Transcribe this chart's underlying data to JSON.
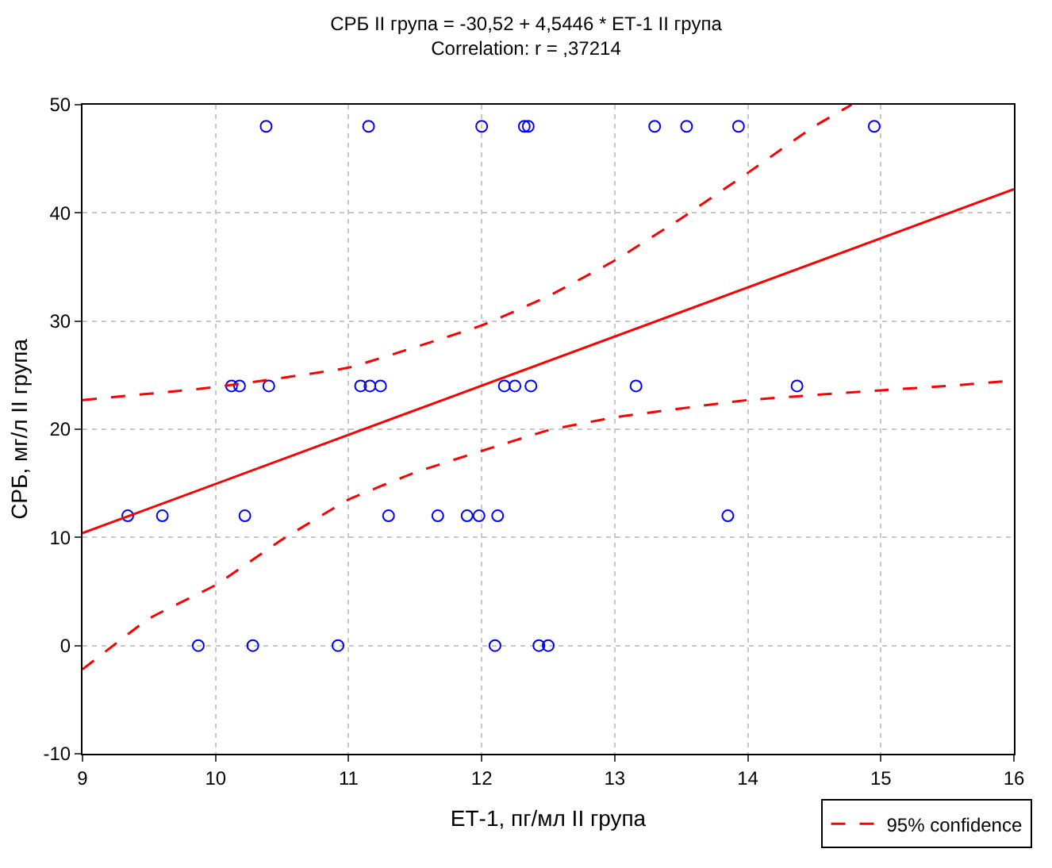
{
  "chart_data": {
    "type": "scatter",
    "title": "СРБ II група = -30,52 + 4,5446 * ЕТ-1 II група",
    "subtitle": "Correlation: r = ,37214",
    "xlabel": "ЕТ-1, пг/мл II група",
    "ylabel": "СРБ, мг/л II група",
    "xlim": [
      9,
      16
    ],
    "xticks": [
      9,
      10,
      11,
      12,
      13,
      14,
      15,
      16
    ],
    "ylim": [
      -10,
      50
    ],
    "yticks": [
      -10,
      0,
      10,
      20,
      30,
      40,
      50
    ],
    "grid": true,
    "legend": "bottom right",
    "series": [
      {
        "type": "scatter",
        "color": "#0000ff",
        "marker": "circle",
        "x": [
          10.38,
          11.15,
          12.0,
          12.32,
          12.35,
          13.3,
          13.54,
          13.93,
          14.95,
          10.12,
          10.18,
          10.4,
          11.09,
          11.16,
          11.24,
          12.17,
          12.25,
          12.37,
          13.16,
          14.37,
          9.34,
          9.6,
          10.22,
          11.3,
          11.67,
          11.89,
          11.98,
          12.12,
          13.85,
          9.87,
          10.28,
          10.92,
          12.1,
          12.43,
          12.5
        ],
        "values": [
          48,
          48,
          48,
          48,
          48,
          48,
          48,
          48,
          48,
          24,
          24,
          24,
          24,
          24,
          24,
          24,
          24,
          24,
          24,
          24,
          12,
          12,
          12,
          12,
          12,
          12,
          12,
          12,
          12,
          0,
          0,
          0,
          0,
          0,
          0
        ]
      },
      {
        "type": "line",
        "color": "#ff0000",
        "line_style": "solid",
        "x": [
          9,
          16
        ],
        "values": [
          10.4,
          42.2
        ]
      },
      {
        "type": "line",
        "name": "95% confidence",
        "color": "#ff0000",
        "line_style": "dashed",
        "x": [
          9,
          10,
          11,
          12,
          12.5,
          13,
          13.5,
          14,
          14.5,
          14.78
        ],
        "values": [
          22.7,
          23.9,
          25.7,
          29.6,
          32.3,
          35.6,
          39.5,
          43.7,
          48,
          50
        ]
      },
      {
        "type": "line",
        "color": "#ff0000",
        "line_style": "dashed",
        "x": [
          9,
          9.5,
          10,
          10.5,
          11,
          11.5,
          12,
          12.5,
          13,
          14,
          15,
          15.5,
          16
        ],
        "values": [
          -2.2,
          2.5,
          5.6,
          9.8,
          13.5,
          16.0,
          18.0,
          19.9,
          21.1,
          22.7,
          23.6,
          24.0,
          24.5
        ]
      }
    ]
  }
}
